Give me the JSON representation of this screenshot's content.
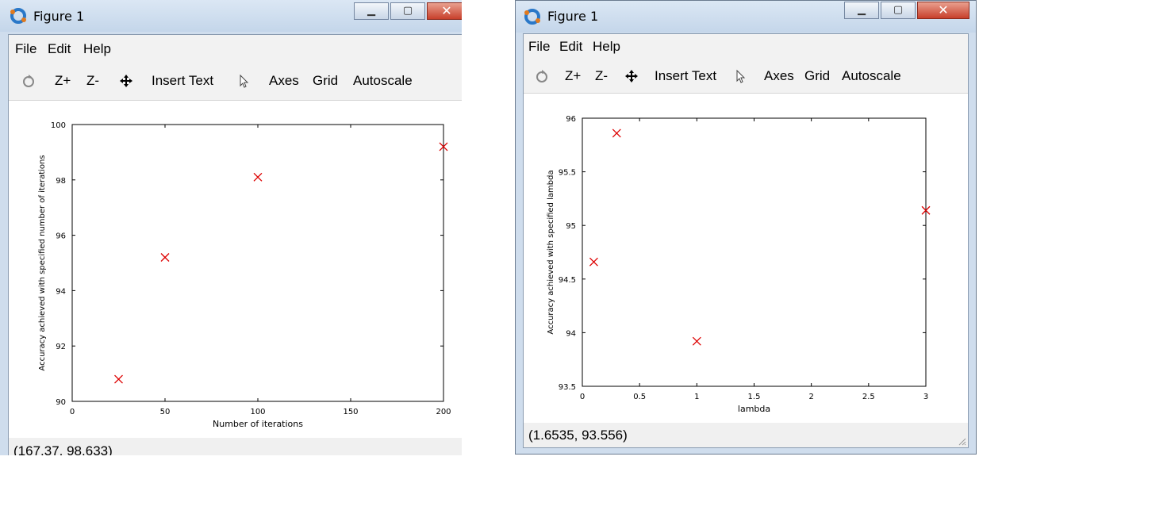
{
  "figure1": {
    "title": "Figure 1",
    "menu": [
      "File",
      "Edit",
      "Help"
    ],
    "toolbar": {
      "zoom_in": "Z+",
      "zoom_out": "Z-",
      "insert_text": "Insert Text",
      "axes": "Axes",
      "grid": "Grid",
      "autoscale": "Autoscale"
    },
    "status": "(167.37, 98.633)"
  },
  "figure2": {
    "title": "Figure 1",
    "menu": [
      "File",
      "Edit",
      "Help"
    ],
    "toolbar": {
      "zoom_in": "Z+",
      "zoom_out": "Z-",
      "insert_text": "Insert Text",
      "axes": "Axes",
      "grid": "Grid",
      "autoscale": "Autoscale"
    },
    "status": "(1.6535, 93.556)"
  },
  "colors": {
    "marker": "#dd0000",
    "accent_close": "#c8402c"
  },
  "chart_data": [
    {
      "type": "scatter",
      "xlabel": "Number of iterations",
      "ylabel": "Accuracy achieved with specified number of iterations",
      "xlim": [
        0,
        200
      ],
      "ylim": [
        90,
        100
      ],
      "xticks": [
        "0",
        "50",
        "100",
        "150",
        "200"
      ],
      "yticks": [
        "90",
        "92",
        "94",
        "96",
        "98",
        "100"
      ],
      "x": [
        25,
        50,
        100,
        200
      ],
      "y": [
        90.8,
        95.2,
        98.1,
        99.2
      ],
      "marker": "x",
      "grid": false
    },
    {
      "type": "scatter",
      "xlabel": "lambda",
      "ylabel": "Accuracy achieved with specified lambda",
      "xlim": [
        0,
        3
      ],
      "ylim": [
        93.5,
        96
      ],
      "xticks": [
        "0",
        "0.5",
        "1",
        "1.5",
        "2",
        "2.5",
        "3"
      ],
      "yticks": [
        "93.5",
        "94",
        "94.5",
        "95",
        "95.5",
        "96"
      ],
      "x": [
        0.1,
        0.3,
        1,
        3
      ],
      "y": [
        94.66,
        95.86,
        93.92,
        95.14
      ],
      "marker": "x",
      "grid": false
    }
  ]
}
